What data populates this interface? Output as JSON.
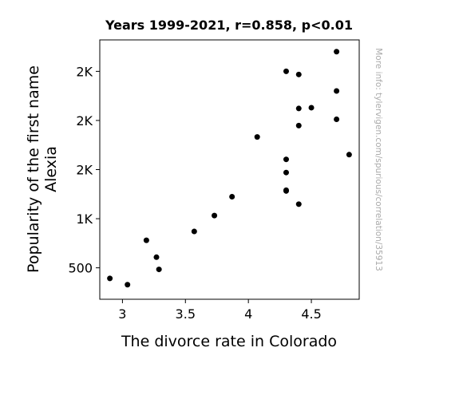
{
  "chart_data": {
    "type": "scatter",
    "title": "Years 1999-2021, r=0.858, p<0.01",
    "xlabel": "The divorce rate in Colorado",
    "ylabel_lines": [
      "Popularity of the first name",
      "Alexia"
    ],
    "credit": "More info: tylervigen.com/spurious/correlation/35913",
    "xlim": [
      2.82,
      4.88
    ],
    "ylim": [
      180,
      2820
    ],
    "x_ticks": [
      {
        "value": 3.0,
        "label": "3"
      },
      {
        "value": 3.5,
        "label": "3.5"
      },
      {
        "value": 4.0,
        "label": "4"
      },
      {
        "value": 4.5,
        "label": "4.5"
      }
    ],
    "y_ticks": [
      {
        "value": 500,
        "label": "500"
      },
      {
        "value": 1000,
        "label": "1K"
      },
      {
        "value": 1500,
        "label": "2K"
      },
      {
        "value": 2000,
        "label": "2K"
      },
      {
        "value": 2500,
        "label": "2K"
      }
    ],
    "marker_color": "#000000",
    "points": [
      {
        "x": 2.9,
        "y": 392
      },
      {
        "x": 3.04,
        "y": 328
      },
      {
        "x": 3.19,
        "y": 780
      },
      {
        "x": 3.27,
        "y": 608
      },
      {
        "x": 3.29,
        "y": 484
      },
      {
        "x": 3.57,
        "y": 870
      },
      {
        "x": 3.73,
        "y": 1032
      },
      {
        "x": 3.87,
        "y": 1224
      },
      {
        "x": 4.07,
        "y": 1832
      },
      {
        "x": 4.3,
        "y": 1604
      },
      {
        "x": 4.3,
        "y": 1470
      },
      {
        "x": 4.3,
        "y": 1290
      },
      {
        "x": 4.3,
        "y": 1282
      },
      {
        "x": 4.3,
        "y": 2500
      },
      {
        "x": 4.4,
        "y": 2468
      },
      {
        "x": 4.4,
        "y": 2122
      },
      {
        "x": 4.4,
        "y": 1948
      },
      {
        "x": 4.4,
        "y": 1148
      },
      {
        "x": 4.5,
        "y": 2130
      },
      {
        "x": 4.7,
        "y": 2700
      },
      {
        "x": 4.7,
        "y": 2300
      },
      {
        "x": 4.7,
        "y": 2012
      },
      {
        "x": 4.8,
        "y": 1652
      }
    ]
  }
}
